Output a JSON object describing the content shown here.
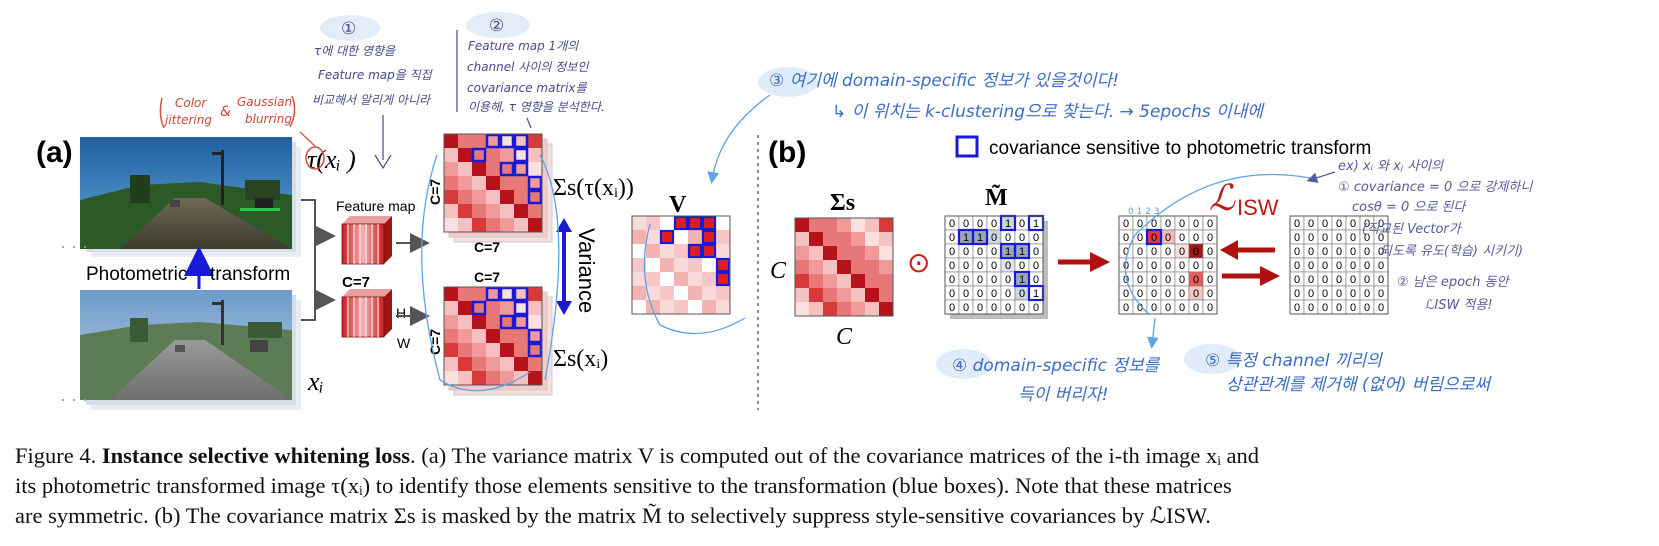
{
  "panel_a": {
    "label": "(a)",
    "feature_map_title": "Feature map",
    "feature_map_c": "C=7",
    "feature_map_h": "H",
    "feature_map_w": "W",
    "photometric_label": "Photometric",
    "transform_label": "transform",
    "tau_label": "τ(xᵢ )",
    "x_label": "xᵢ",
    "matrix_top_c_left": "C=7",
    "matrix_top_c_bottom": "C=7",
    "matrix_bot_c_left": "C=7",
    "matrix_bot_c_top": "C=7",
    "sigma_tau_label": "Σs(τ(xᵢ))",
    "sigma_x_label": "Σs(xᵢ)",
    "variance_label": "Variance",
    "v_label": "V"
  },
  "panel_b": {
    "label": "(b)",
    "legend_text": "covariance sensitive to photometric transform",
    "sigma_label": "Σs",
    "c_left": "C",
    "c_bottom": "C",
    "m_label": "M̃",
    "odot": "⊙",
    "loss_label": "ℒISW",
    "mask_matrix": [
      [
        "0",
        "0",
        "0",
        "0",
        "1",
        "0",
        "1"
      ],
      [
        "0",
        "1",
        "1",
        "0",
        "0",
        "0",
        "0"
      ],
      [
        "0",
        "0",
        "0",
        "0",
        "1",
        "1",
        "0"
      ],
      [
        "0",
        "0",
        "0",
        "0",
        "0",
        "0",
        "0"
      ],
      [
        "0",
        "0",
        "0",
        "0",
        "0",
        "1",
        "0"
      ],
      [
        "0",
        "0",
        "0",
        "0",
        "0",
        "0",
        "1"
      ],
      [
        "0",
        "0",
        "0",
        "0",
        "0",
        "0",
        "0"
      ]
    ],
    "result_matrix": [
      [
        "0",
        "0",
        "0",
        "0",
        "0",
        "0",
        "0"
      ],
      [
        "0",
        "0",
        "0",
        "0",
        "0",
        "0",
        "0"
      ],
      [
        "0",
        "0",
        "0",
        "0",
        "0",
        "0",
        "0"
      ],
      [
        "0",
        "0",
        "0",
        "0",
        "0",
        "0",
        "0"
      ],
      [
        "0",
        "0",
        "0",
        "0",
        "0",
        "0",
        "0"
      ],
      [
        "0",
        "0",
        "0",
        "0",
        "0",
        "0",
        "0"
      ],
      [
        "0",
        "0",
        "0",
        "0",
        "0",
        "0",
        "0"
      ]
    ],
    "zero_matrix": [
      [
        "0",
        "0",
        "0",
        "0",
        "0",
        "0",
        "0"
      ],
      [
        "0",
        "0",
        "0",
        "0",
        "0",
        "0",
        "0"
      ],
      [
        "0",
        "0",
        "0",
        "0",
        "0",
        "0",
        "0"
      ],
      [
        "0",
        "0",
        "0",
        "0",
        "0",
        "0",
        "0"
      ],
      [
        "0",
        "0",
        "0",
        "0",
        "0",
        "0",
        "0"
      ],
      [
        "0",
        "0",
        "0",
        "0",
        "0",
        "0",
        "0"
      ],
      [
        "0",
        "0",
        "0",
        "0",
        "0",
        "0",
        "0"
      ]
    ]
  },
  "annotations": {
    "color_note_1": "Color",
    "color_note_2": "jittering",
    "color_note_amp": "&",
    "color_note_3": "Gaussian",
    "color_note_4": "blurring",
    "circle_1": "①",
    "circle_2": "②",
    "note1_line1": "τ에 대한 영향을",
    "note1_line2": "Feature map을 직접",
    "note1_line3": "비교해서 알리게 아니라",
    "note2_line1": "Feature map 1개의",
    "note2_line2": "channel 사이의 정보인",
    "note2_line3": "covariance matrix를",
    "note2_line4": "이용해, τ 영향을 분석한다.",
    "note3_line1": "③ 여기에 domain-specific 정보가 있을것이다!",
    "note3_line2": "↳ 이 위치는 k-clustering으로 찾는다. → 5epochs 이내에",
    "note4": "④ domain-specific 정보를",
    "note4_line2": "득이 버리자!",
    "note5": "⑤ 특정 channel 끼리의",
    "note5_line2": "상관관계를 제거해 (없어) 버림으로써",
    "right_note1": "ex) xᵢ 와 xⱼ 사이의",
    "right_note2": "① covariance = 0 으로 강제하니",
    "right_note3": "cosθ = 0 으로 된다",
    "right_note4": "(직교된 Vector가",
    "right_note5": "되도록 유도(학습) 시키기)",
    "right_note6": "② 남은 epoch 동안",
    "right_note7": "ℒISW 적용!",
    "axis_nums": "0 1 2 3"
  },
  "caption": {
    "fig": "Figure 4.",
    "bold": "Instance selective whitening loss",
    "l1_rest": ". (a) The variance matrix V is computed out of the covariance matrices of the i-th image xᵢ and",
    "l2": "its photometric transformed image τ(xᵢ) to identify those elements sensitive to the transformation (blue boxes). Note that these matrices",
    "l3": "are symmetric. (b) The covariance matrix Σs is masked by the matrix M̃ to selectively suppress style-sensitive covariances by ℒISW."
  }
}
